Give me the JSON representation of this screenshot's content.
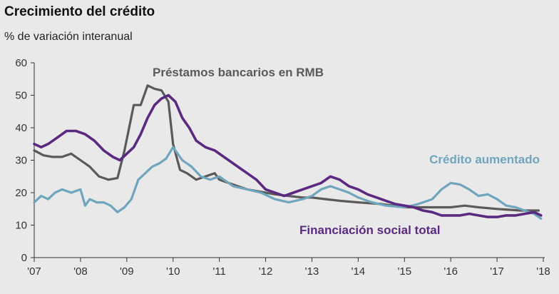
{
  "title": "Crecimiento del crédito",
  "subtitle": "% de variación interanual",
  "chart_data": {
    "type": "line",
    "title": "Crecimiento del crédito",
    "subtitle": "% de variación interanual",
    "xlabel": "",
    "ylabel": "",
    "xlim": [
      2007,
      2018
    ],
    "ylim": [
      0,
      60
    ],
    "yticks": [
      "0",
      "10",
      "20",
      "30",
      "40",
      "50",
      "60"
    ],
    "xticks": [
      "'07",
      "'08",
      "'09",
      "'10",
      "'11",
      "'12",
      "'13",
      "'14",
      "'15",
      "'16",
      "'17",
      "'18"
    ],
    "grid": false,
    "series": [
      {
        "name": "Préstamos bancarios en RMB",
        "color": "#5a5a5a",
        "x": [
          2007.0,
          2007.2,
          2007.4,
          2007.6,
          2007.8,
          2008.0,
          2008.2,
          2008.4,
          2008.6,
          2008.8,
          2008.95,
          2009.05,
          2009.15,
          2009.3,
          2009.45,
          2009.6,
          2009.75,
          2009.9,
          2010.0,
          2010.15,
          2010.3,
          2010.5,
          2010.7,
          2010.9,
          2011.0,
          2011.2,
          2011.4,
          2011.6,
          2011.8,
          2012.0,
          2012.2,
          2012.5,
          2012.8,
          2013.0,
          2013.3,
          2013.6,
          2014.0,
          2014.5,
          2015.0,
          2015.5,
          2016.0,
          2016.3,
          2016.6,
          2017.0,
          2017.5,
          2017.9
        ],
        "y": [
          33,
          31.5,
          31,
          31,
          32,
          30,
          28,
          25,
          24,
          24.5,
          33,
          40,
          47,
          47,
          53,
          52,
          51.5,
          48,
          35,
          27,
          26,
          24,
          25,
          26,
          24,
          23,
          22,
          21,
          20.5,
          20,
          19.5,
          19,
          18.5,
          18.5,
          18,
          17.5,
          17,
          16.5,
          15.5,
          15.5,
          15.5,
          16,
          15.5,
          15,
          14.5,
          14.5
        ]
      },
      {
        "name": "Crédito aumentado",
        "color": "#6fa5bd",
        "x": [
          2007.0,
          2007.15,
          2007.3,
          2007.45,
          2007.6,
          2007.8,
          2008.0,
          2008.1,
          2008.2,
          2008.35,
          2008.5,
          2008.65,
          2008.8,
          2008.95,
          2009.1,
          2009.25,
          2009.4,
          2009.55,
          2009.7,
          2009.85,
          2010.0,
          2010.2,
          2010.4,
          2010.6,
          2010.8,
          2011.0,
          2011.3,
          2011.6,
          2011.9,
          2012.2,
          2012.5,
          2012.8,
          2013.0,
          2013.2,
          2013.4,
          2013.6,
          2013.8,
          2014.0,
          2014.3,
          2014.6,
          2015.0,
          2015.3,
          2015.6,
          2015.8,
          2016.0,
          2016.2,
          2016.4,
          2016.6,
          2016.8,
          2017.0,
          2017.2,
          2017.4,
          2017.6,
          2017.8,
          2017.95
        ],
        "y": [
          17,
          19,
          18,
          20,
          21,
          20,
          21,
          16,
          18,
          17,
          17,
          16,
          14,
          15.5,
          18,
          24,
          26,
          28,
          29,
          30.5,
          34,
          30,
          28,
          25,
          24,
          25,
          22,
          21,
          20,
          18,
          17,
          18,
          19,
          21,
          22,
          21,
          20,
          18.5,
          17,
          16,
          15.5,
          16.5,
          18,
          21,
          23,
          22.5,
          21,
          19,
          19.5,
          18,
          16,
          15.5,
          14.5,
          13.5,
          12
        ]
      },
      {
        "name": "Financiación social total",
        "color": "#5b2a80",
        "x": [
          2007.0,
          2007.15,
          2007.3,
          2007.5,
          2007.7,
          2007.9,
          2008.1,
          2008.3,
          2008.5,
          2008.7,
          2008.85,
          2009.0,
          2009.15,
          2009.3,
          2009.45,
          2009.6,
          2009.75,
          2009.9,
          2010.05,
          2010.2,
          2010.35,
          2010.5,
          2010.7,
          2010.9,
          2011.0,
          2011.2,
          2011.4,
          2011.6,
          2011.8,
          2012.0,
          2012.2,
          2012.4,
          2012.6,
          2012.8,
          2013.0,
          2013.2,
          2013.4,
          2013.6,
          2013.8,
          2014.0,
          2014.2,
          2014.4,
          2014.6,
          2014.8,
          2015.0,
          2015.2,
          2015.4,
          2015.6,
          2015.8,
          2016.0,
          2016.2,
          2016.4,
          2016.6,
          2016.8,
          2017.0,
          2017.2,
          2017.4,
          2017.6,
          2017.8,
          2017.95
        ],
        "y": [
          35,
          34,
          35,
          37,
          39,
          39,
          38,
          36,
          33,
          31,
          30,
          32,
          34,
          38,
          43,
          47,
          49,
          50,
          48,
          43,
          40,
          36,
          34,
          33,
          32,
          30,
          28,
          26,
          24,
          21,
          20,
          19,
          20,
          21,
          22,
          23,
          25,
          24,
          22,
          21,
          19.5,
          18.5,
          17.5,
          16.5,
          16,
          15.5,
          14.5,
          14,
          13,
          13,
          13,
          13.5,
          13,
          12.5,
          12.5,
          13,
          13,
          13.5,
          14,
          13
        ]
      }
    ]
  }
}
